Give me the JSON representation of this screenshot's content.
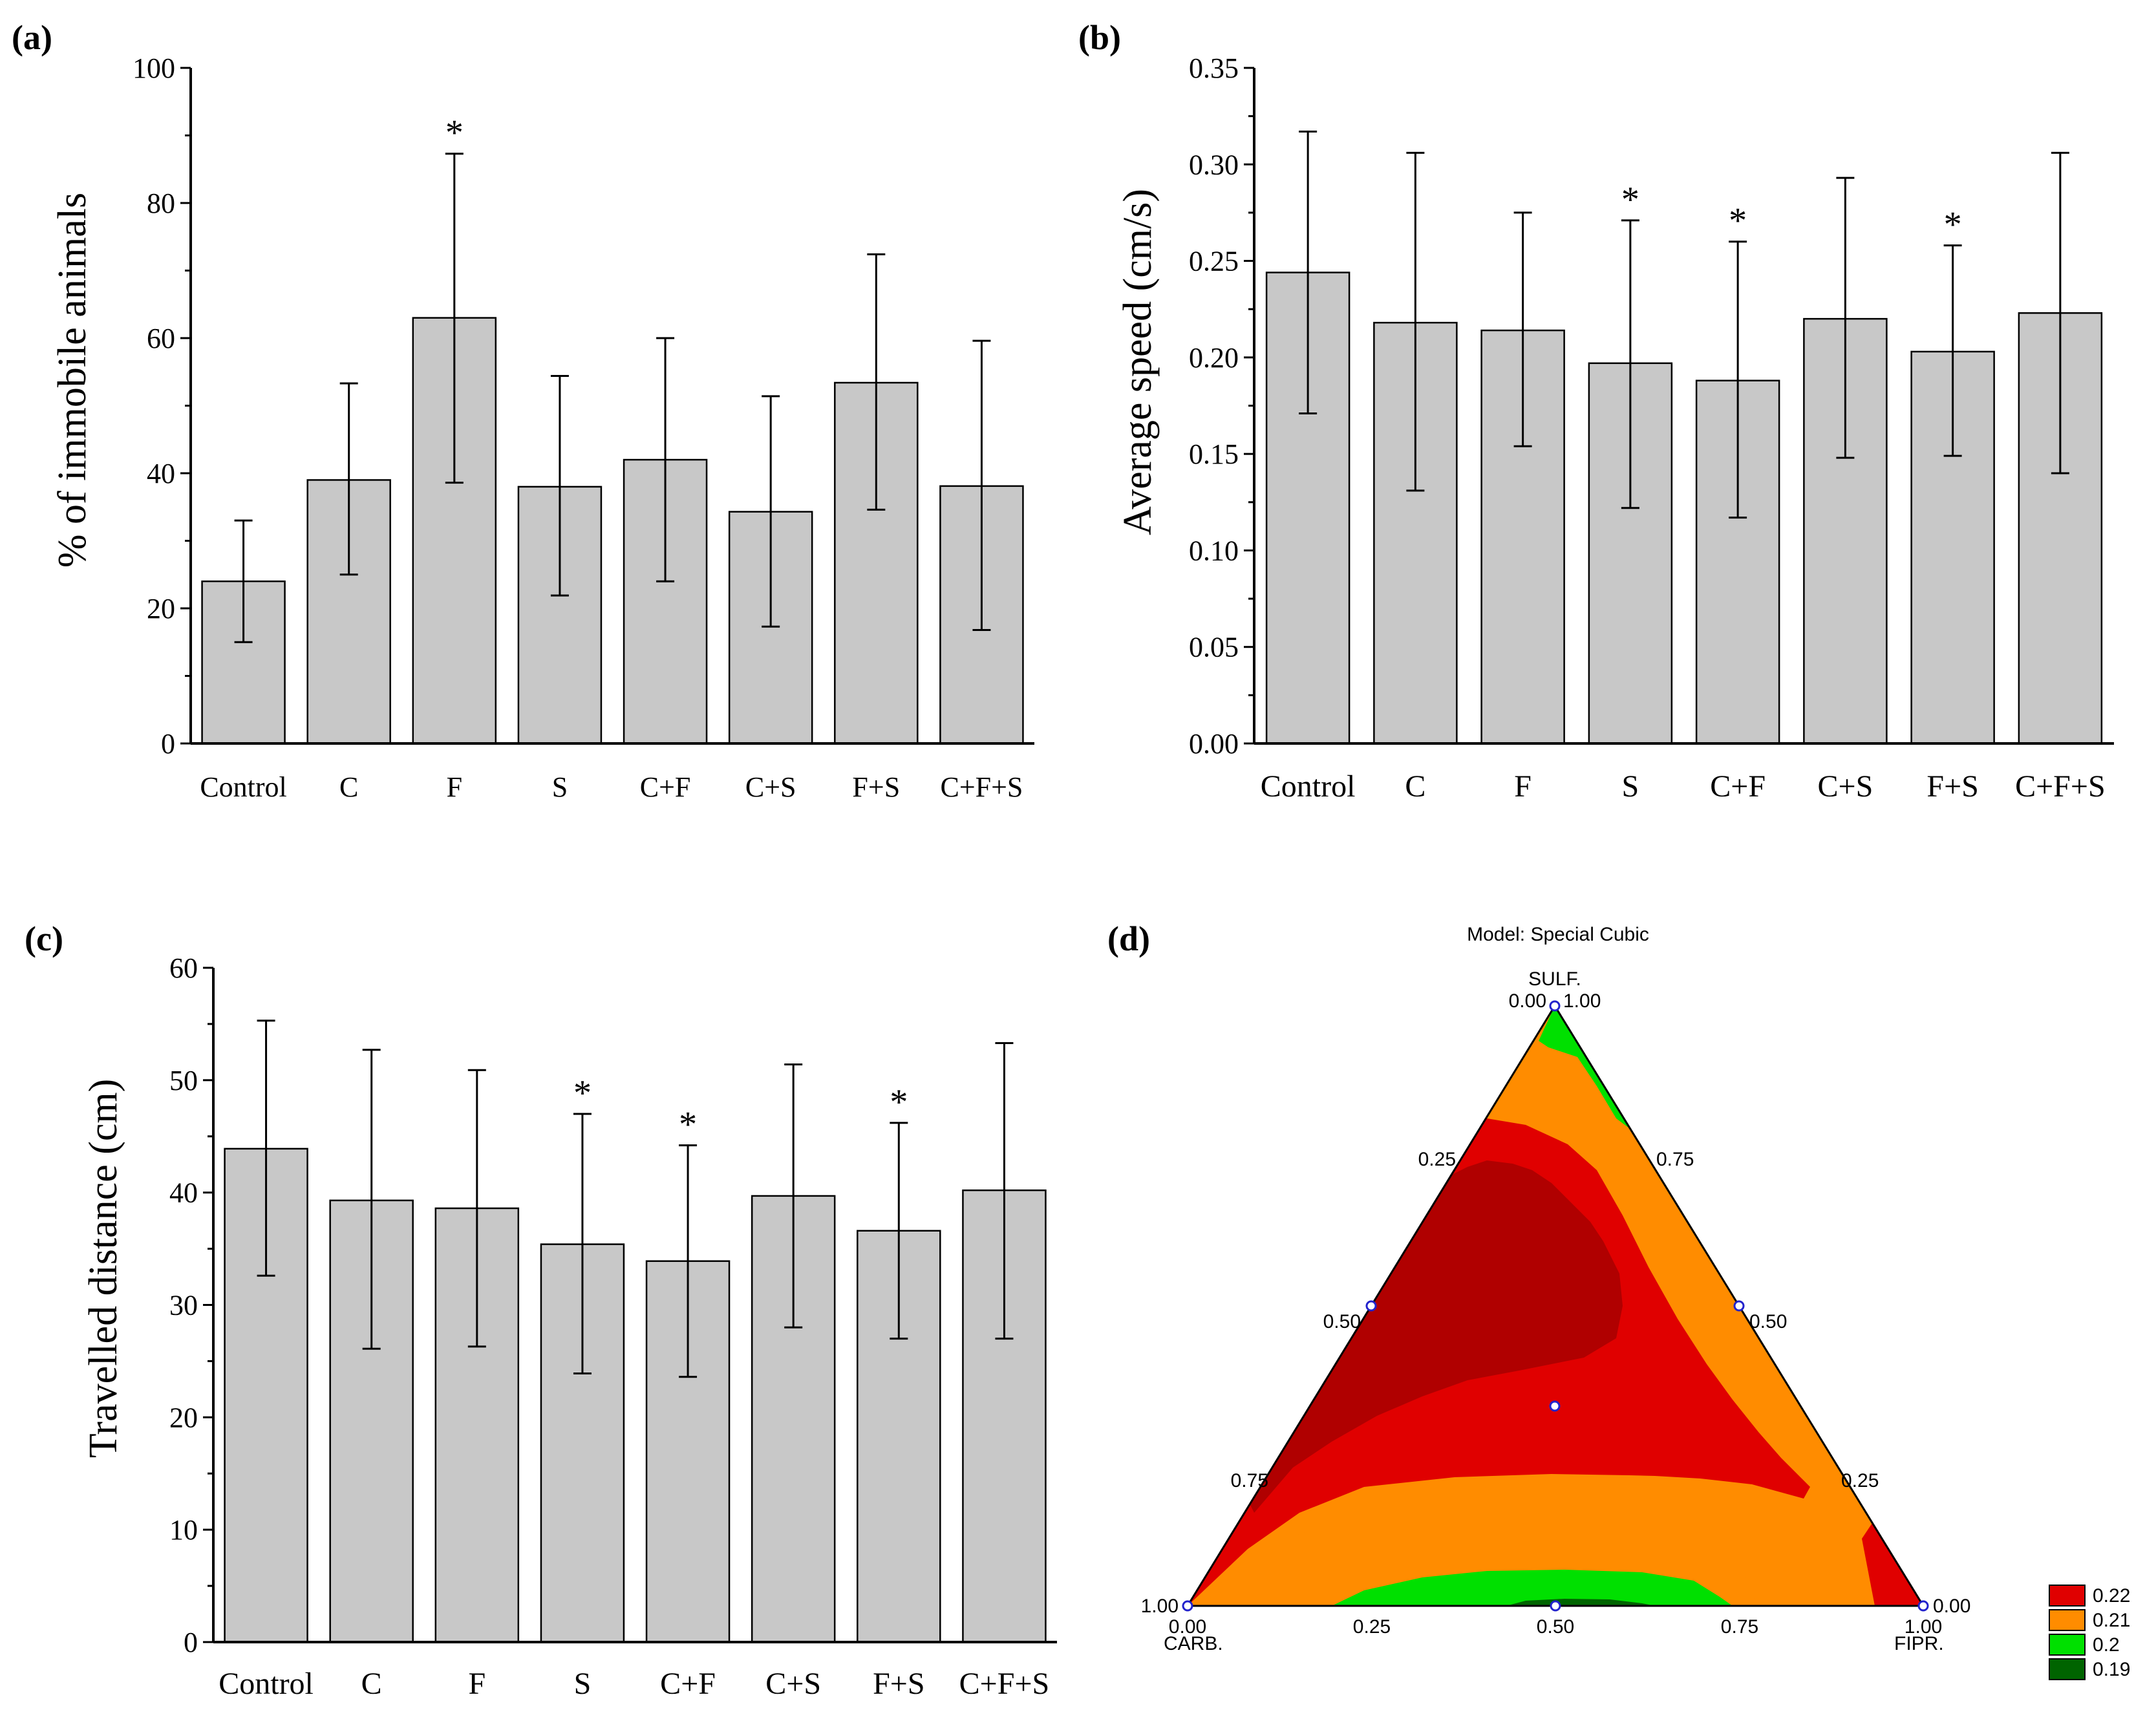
{
  "chart_data": [
    {
      "type": "bar",
      "panel_label": "(a)",
      "title": "",
      "xlabel": "",
      "ylabel": "% of immobile animals",
      "categories": [
        "Control",
        "C",
        "F",
        "S",
        "C+F",
        "C+S",
        "F+S",
        "C+F+S"
      ],
      "values": [
        24,
        39,
        63,
        38,
        42,
        34.3,
        53.4,
        38.1
      ],
      "error_low": [
        15,
        25,
        38.6,
        21.9,
        24,
        17.3,
        34.6,
        16.8
      ],
      "error_high": [
        33,
        53.3,
        87.3,
        54.4,
        60,
        51.4,
        72.4,
        59.6
      ],
      "significant": [
        "",
        "",
        "*",
        "",
        "",
        "",
        "",
        ""
      ],
      "ylim": [
        0,
        100
      ],
      "yticks": [
        "0",
        "20",
        "40",
        "60",
        "80",
        "100"
      ],
      "grid": false
    },
    {
      "type": "bar",
      "panel_label": "(b)",
      "title": "",
      "xlabel": "",
      "ylabel": "Average speed (cm/s)",
      "categories": [
        "Control",
        "C",
        "F",
        "S",
        "C+F",
        "C+S",
        "F+S",
        "C+F+S"
      ],
      "values": [
        0.244,
        0.218,
        0.214,
        0.197,
        0.188,
        0.22,
        0.203,
        0.223
      ],
      "error_low": [
        0.171,
        0.131,
        0.154,
        0.122,
        0.117,
        0.148,
        0.149,
        0.14
      ],
      "error_high": [
        0.317,
        0.306,
        0.275,
        0.271,
        0.26,
        0.293,
        0.258,
        0.306
      ],
      "significant": [
        "",
        "",
        "",
        "*",
        "*",
        "",
        "*",
        ""
      ],
      "ylim": [
        0,
        0.35
      ],
      "yticks": [
        "0.00",
        "0.05",
        "0.10",
        "0.15",
        "0.20",
        "0.25",
        "0.30",
        "0.35"
      ],
      "grid": false
    },
    {
      "type": "bar",
      "panel_label": "(c)",
      "title": "",
      "xlabel": "",
      "ylabel": "Travelled distance (cm)",
      "categories": [
        "Control",
        "C",
        "F",
        "S",
        "C+F",
        "C+S",
        "F+S",
        "C+F+S"
      ],
      "values": [
        43.9,
        39.3,
        38.6,
        35.4,
        33.9,
        39.7,
        36.6,
        40.2
      ],
      "error_low": [
        32.6,
        26.1,
        26.3,
        23.9,
        23.6,
        28,
        27,
        27
      ],
      "error_high": [
        55.3,
        52.7,
        50.9,
        47,
        44.2,
        51.4,
        46.2,
        53.3
      ],
      "significant": [
        "",
        "",
        "",
        "*",
        "*",
        "",
        "*",
        ""
      ],
      "ylim": [
        0,
        60
      ],
      "yticks": [
        "0",
        "10",
        "20",
        "30",
        "40",
        "50",
        "60"
      ],
      "grid": false
    },
    {
      "type": "ternary-contour",
      "panel_label": "(d)",
      "title": "Model: Special Cubic",
      "components": [
        "CARB.",
        "FIPR.",
        "SULF."
      ],
      "left_ticks": [
        "1.00",
        "0.75",
        "0.50",
        "0.25",
        "0.00"
      ],
      "right_ticks": [
        "1.00",
        "0.75",
        "0.50",
        "0.25",
        "0.00"
      ],
      "bottom_ticks": [
        "0.00",
        "0.25",
        "0.50",
        "0.75",
        "1.00"
      ],
      "design_points": [
        {
          "carb": 1,
          "fipr": 0,
          "sulf": 0
        },
        {
          "carb": 0,
          "fipr": 1,
          "sulf": 0
        },
        {
          "carb": 0,
          "fipr": 0,
          "sulf": 1
        },
        {
          "carb": 0.5,
          "fipr": 0.5,
          "sulf": 0
        },
        {
          "carb": 0.5,
          "fipr": 0,
          "sulf": 0.5
        },
        {
          "carb": 0,
          "fipr": 0.5,
          "sulf": 0.5
        },
        {
          "carb": 0.333,
          "fipr": 0.333,
          "sulf": 0.333
        }
      ],
      "legend": [
        {
          "label": "0.22",
          "color": "#e00000"
        },
        {
          "label": "0.21",
          "color": "#ff8c00"
        },
        {
          "label": "0.2",
          "color": "#00e000"
        },
        {
          "label": "0.19",
          "color": "#006400"
        }
      ],
      "region_colors": {
        "max": "#b00000",
        "level1": "#e00000",
        "level2": "#ff8c00",
        "level3": "#00e000",
        "level4": "#006400"
      }
    }
  ]
}
